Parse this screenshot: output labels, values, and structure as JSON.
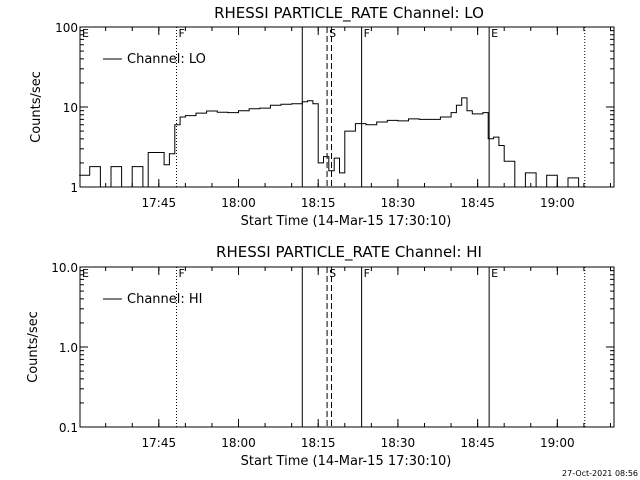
{
  "footer": {
    "timestamp": "27-Oct-2021 08:56"
  },
  "chart_data": [
    {
      "type": "line",
      "title": "RHESSI PARTICLE_RATE Channel: LO",
      "xlabel": "Start Time (14-Mar-15 17:30:10)",
      "ylabel": "Counts/sec",
      "yscale": "log",
      "ylim": [
        1,
        100
      ],
      "xlim": [
        "17:30:10",
        "19:10:40"
      ],
      "xticks": [
        "17:45",
        "18:00",
        "18:15",
        "18:30",
        "18:45",
        "19:00"
      ],
      "yticks": [
        "1",
        "10",
        "100"
      ],
      "legend": {
        "position": "top-left",
        "entries": [
          "Channel: LO"
        ]
      },
      "markers": [
        {
          "label": "E",
          "time": "17:30:10",
          "style": "dotted"
        },
        {
          "label": "F",
          "time": "17:48:20",
          "style": "dotted"
        },
        {
          "label": "",
          "time": "18:12:00",
          "style": "solid"
        },
        {
          "label": "S",
          "time": "18:16:40",
          "style": "dashed"
        },
        {
          "label": "",
          "time": "18:17:30",
          "style": "dashed"
        },
        {
          "label": "F",
          "time": "18:23:10",
          "style": "solid"
        },
        {
          "label": "E",
          "time": "18:47:10",
          "style": "solid"
        },
        {
          "label": "",
          "time": "19:05:10",
          "style": "dotted"
        }
      ],
      "series": [
        {
          "name": "Channel: LO",
          "x": [
            "17:30",
            "17:32",
            "17:34",
            "17:36",
            "17:38",
            "17:40",
            "17:42",
            "17:43",
            "17:45",
            "17:46",
            "17:47",
            "17:48",
            "17:49",
            "17:50",
            "17:52",
            "17:54",
            "17:56",
            "17:58",
            "18:00",
            "18:02",
            "18:04",
            "18:06",
            "18:08",
            "18:10",
            "18:11",
            "18:12",
            "18:13",
            "18:14",
            "18:15",
            "18:16",
            "18:17",
            "18:18",
            "18:19",
            "18:20",
            "18:22",
            "18:24",
            "18:26",
            "18:28",
            "18:30",
            "18:32",
            "18:34",
            "18:36",
            "18:38",
            "18:40",
            "18:41",
            "18:42",
            "18:43",
            "18:44",
            "18:46",
            "18:47",
            "18:48",
            "18:49",
            "18:50",
            "18:52",
            "18:54",
            "18:56",
            "18:58",
            "19:00",
            "19:02",
            "19:04",
            "19:05"
          ],
          "values": [
            1.4,
            1.8,
            1.0,
            1.8,
            1.0,
            1.8,
            1.0,
            2.7,
            2.7,
            1.9,
            2.6,
            6.0,
            7.5,
            7.8,
            8.4,
            8.9,
            8.6,
            8.5,
            9.0,
            9.5,
            9.7,
            10.5,
            10.8,
            11.0,
            11.0,
            11.6,
            12.0,
            11.0,
            2.0,
            2.4,
            1.6,
            2.3,
            1.5,
            5.0,
            6.2,
            6.0,
            6.5,
            6.8,
            6.7,
            7.1,
            7.0,
            7.0,
            7.5,
            8.5,
            10.5,
            13.0,
            9.0,
            8.2,
            8.5,
            4.0,
            4.2,
            3.3,
            2.1,
            1.0,
            1.5,
            1.0,
            1.4,
            1.0,
            1.3,
            1.0,
            1.0
          ]
        }
      ]
    },
    {
      "type": "line",
      "title": "RHESSI PARTICLE_RATE Channel: HI",
      "xlabel": "Start Time (14-Mar-15 17:30:10)",
      "ylabel": "Counts/sec",
      "yscale": "log",
      "ylim": [
        0.1,
        10
      ],
      "xlim": [
        "17:30:10",
        "19:10:40"
      ],
      "xticks": [
        "17:45",
        "18:00",
        "18:15",
        "18:30",
        "18:45",
        "19:00"
      ],
      "yticks": [
        "0.1",
        "1.0",
        "10.0"
      ],
      "legend": {
        "position": "top-left",
        "entries": [
          "Channel: HI"
        ]
      },
      "markers": [
        {
          "label": "E",
          "time": "17:30:10",
          "style": "dotted"
        },
        {
          "label": "F",
          "time": "17:48:20",
          "style": "dotted"
        },
        {
          "label": "",
          "time": "18:12:00",
          "style": "solid"
        },
        {
          "label": "S",
          "time": "18:16:40",
          "style": "dashed"
        },
        {
          "label": "",
          "time": "18:17:30",
          "style": "dashed"
        },
        {
          "label": "F",
          "time": "18:23:10",
          "style": "solid"
        },
        {
          "label": "E",
          "time": "18:47:10",
          "style": "solid"
        },
        {
          "label": "",
          "time": "19:05:10",
          "style": "dotted"
        }
      ],
      "series": [
        {
          "name": "Channel: HI",
          "x": [],
          "values": []
        }
      ]
    }
  ]
}
